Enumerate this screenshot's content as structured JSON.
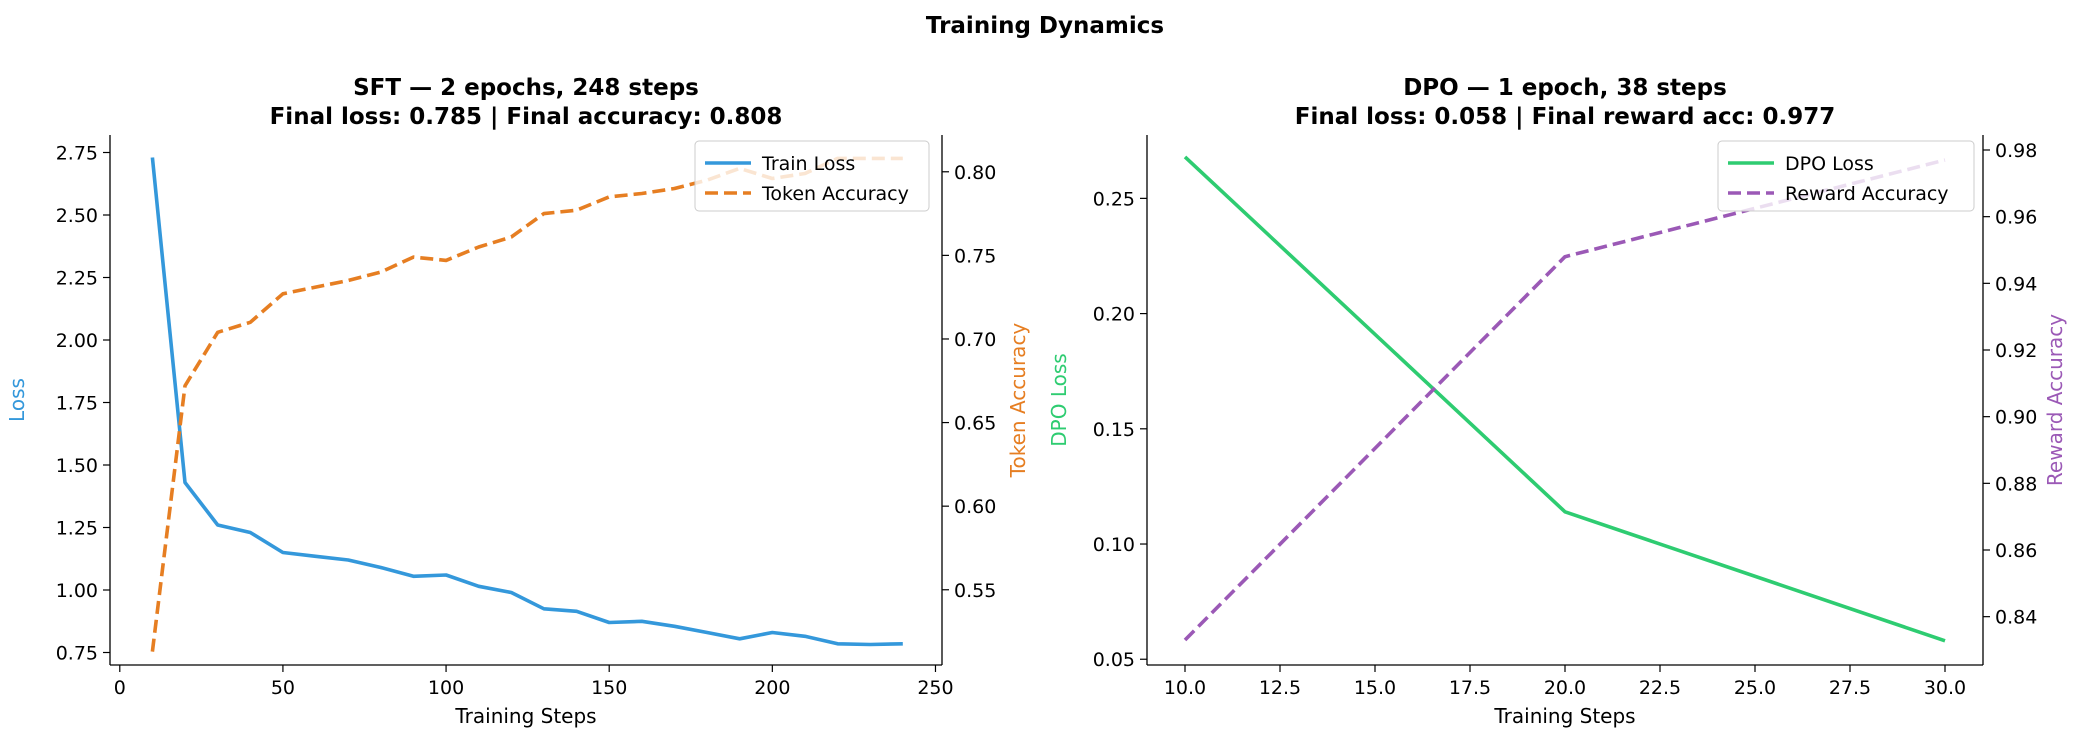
{
  "figure": {
    "suptitle": "Training Dynamics"
  },
  "chart_data": [
    {
      "type": "line",
      "title": "SFT — 2 epochs, 248 steps\nFinal loss: 0.785  |  Final accuracy: 0.808",
      "xlabel": "Training Steps",
      "ylabel_left": "Loss",
      "ylabel_right": "Token Accuracy",
      "xlim": [
        -3,
        252
      ],
      "ylim_left": [
        0.7,
        2.82
      ],
      "ylim_right": [
        0.505,
        0.822
      ],
      "xticks": [
        0,
        50,
        100,
        150,
        200,
        250
      ],
      "xtick_labels": [
        "0",
        "50",
        "100",
        "150",
        "200",
        "250"
      ],
      "yticks_left": [
        0.75,
        1.0,
        1.25,
        1.5,
        1.75,
        2.0,
        2.25,
        2.5,
        2.75
      ],
      "ytick_labels_left": [
        "0.75",
        "1.00",
        "1.25",
        "1.50",
        "1.75",
        "2.00",
        "2.25",
        "2.50",
        "2.75"
      ],
      "yticks_right": [
        0.55,
        0.6,
        0.65,
        0.7,
        0.75,
        0.8
      ],
      "ytick_labels_right": [
        "0.55",
        "0.60",
        "0.65",
        "0.70",
        "0.75",
        "0.80"
      ],
      "legend_position": "top-right",
      "grid": false,
      "series": [
        {
          "name": "Train Loss",
          "axis": "left",
          "color": "#3498db",
          "style": "solid",
          "x": [
            10,
            20,
            30,
            40,
            50,
            60,
            70,
            80,
            90,
            100,
            110,
            120,
            130,
            140,
            150,
            160,
            170,
            180,
            190,
            200,
            210,
            220,
            230,
            240
          ],
          "values": [
            2.73,
            1.43,
            1.26,
            1.23,
            1.15,
            1.135,
            1.12,
            1.09,
            1.055,
            1.06,
            1.015,
            0.99,
            0.925,
            0.915,
            0.87,
            0.875,
            0.855,
            0.83,
            0.805,
            0.83,
            0.815,
            0.785,
            0.782,
            0.785
          ]
        },
        {
          "name": "Token Accuracy",
          "axis": "right",
          "color": "#e67e22",
          "style": "dashed",
          "x": [
            10,
            20,
            30,
            40,
            50,
            60,
            70,
            80,
            90,
            100,
            110,
            120,
            130,
            140,
            150,
            160,
            170,
            180,
            190,
            200,
            210,
            220,
            230,
            240
          ],
          "values": [
            0.513,
            0.672,
            0.704,
            0.71,
            0.727,
            0.731,
            0.735,
            0.74,
            0.749,
            0.747,
            0.755,
            0.761,
            0.775,
            0.777,
            0.785,
            0.787,
            0.79,
            0.795,
            0.802,
            0.796,
            0.799,
            0.808,
            0.808,
            0.808
          ]
        }
      ]
    },
    {
      "type": "line",
      "title": "DPO — 1 epoch, 38 steps\nFinal loss: 0.058  |  Final reward acc: 0.977",
      "xlabel": "Training Steps",
      "ylabel_left": "DPO Loss",
      "ylabel_right": "Reward Accuracy",
      "xlim": [
        9,
        31
      ],
      "ylim_left": [
        0.0475,
        0.2775
      ],
      "ylim_right": [
        0.8255,
        0.9845
      ],
      "xticks": [
        10,
        12.5,
        15,
        17.5,
        20,
        22.5,
        25,
        27.5,
        30
      ],
      "xtick_labels": [
        "10.0",
        "12.5",
        "15.0",
        "17.5",
        "20.0",
        "22.5",
        "25.0",
        "27.5",
        "30.0"
      ],
      "yticks_left": [
        0.05,
        0.1,
        0.15,
        0.2,
        0.25
      ],
      "ytick_labels_left": [
        "0.05",
        "0.10",
        "0.15",
        "0.20",
        "0.25"
      ],
      "yticks_right": [
        0.84,
        0.86,
        0.88,
        0.9,
        0.92,
        0.94,
        0.96,
        0.98
      ],
      "ytick_labels_right": [
        "0.84",
        "0.86",
        "0.88",
        "0.90",
        "0.92",
        "0.94",
        "0.96",
        "0.98"
      ],
      "legend_position": "top-right",
      "grid": false,
      "series": [
        {
          "name": "DPO Loss",
          "axis": "left",
          "color": "#2ecc71",
          "style": "solid",
          "x": [
            10,
            20,
            30
          ],
          "values": [
            0.268,
            0.114,
            0.058
          ]
        },
        {
          "name": "Reward Accuracy",
          "axis": "right",
          "color": "#9b59b6",
          "style": "dashed",
          "x": [
            10,
            20,
            30
          ],
          "values": [
            0.833,
            0.948,
            0.977
          ]
        }
      ]
    }
  ]
}
